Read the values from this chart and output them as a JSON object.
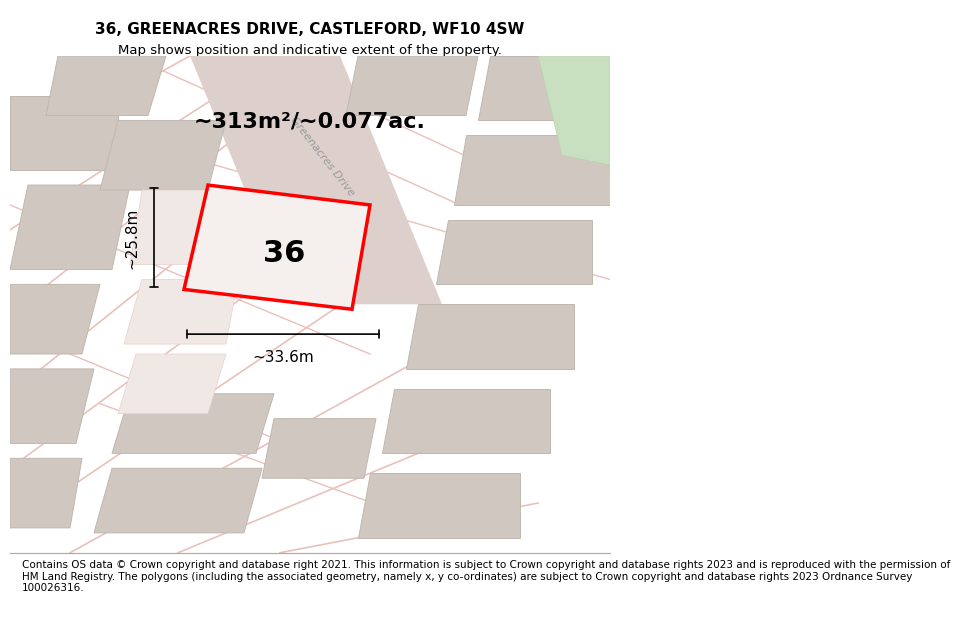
{
  "title": "36, GREENACRES DRIVE, CASTLEFORD, WF10 4SW",
  "subtitle": "Map shows position and indicative extent of the property.",
  "area_text": "~313m²/~0.077ac.",
  "label_36": "36",
  "dim_width": "~33.6m",
  "dim_height": "~25.8m",
  "footer": "Contains OS data © Crown copyright and database right 2021. This information is subject to Crown copyright and database rights 2023 and is reproduced with the permission of\nHM Land Registry. The polygons (including the associated geometry, namely x, y co-ordinates) are subject to Crown copyright and database rights 2023 Ordnance Survey\n100026316.",
  "bg_map_color": "#f2ede8",
  "plot_outline_color": "#ff0000",
  "building_color": "#d0c8c0",
  "bldg_outline": "#c0b8b0",
  "street_label": "Greenacres Drive",
  "fig_width": 6.0,
  "fig_height": 6.25,
  "title_fontsize": 11,
  "subtitle_fontsize": 9.5,
  "area_fontsize": 16,
  "label_fontsize": 22,
  "dim_fontsize": 11,
  "footer_fontsize": 7.5
}
